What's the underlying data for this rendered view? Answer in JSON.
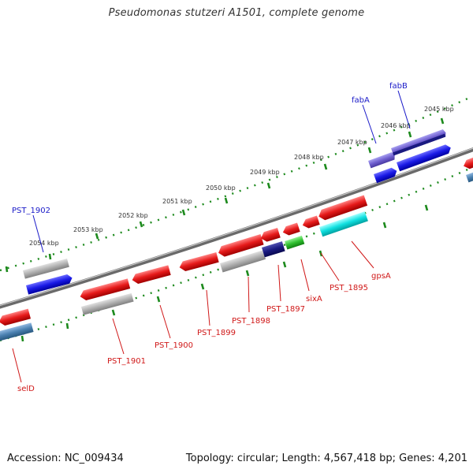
{
  "title": "Pseudomonas stutzeri A1501, complete genome",
  "footer": {
    "accession": "Accession: NC_009434",
    "summary": "Topology: circular; Length: 4,567,418 bp; Genes: 4,201"
  },
  "colors": {
    "backbone": "#8a8a8a",
    "ticks": "#1d8a1d",
    "label_forward": "#1a1ac8",
    "label_reverse": "#d01818"
  },
  "scale_labels": [
    "2045 kbp",
    "2046 kbp",
    "2047 kbp",
    "2048 kbp",
    "2049 kbp",
    "2050 kbp",
    "2051 kbp",
    "2052 kbp",
    "2053 kbp",
    "2054 kbp"
  ],
  "gene_labels": [
    {
      "text": "fabA",
      "strand": "forward"
    },
    {
      "text": "fabB",
      "strand": "forward"
    },
    {
      "text": "PST_1902",
      "strand": "forward"
    },
    {
      "text": "gpsA",
      "strand": "reverse"
    },
    {
      "text": "PST_1895",
      "strand": "reverse"
    },
    {
      "text": "sixA",
      "strand": "reverse"
    },
    {
      "text": "PST_1897",
      "strand": "reverse"
    },
    {
      "text": "PST_1898",
      "strand": "reverse"
    },
    {
      "text": "PST_1899",
      "strand": "reverse"
    },
    {
      "text": "PST_1900",
      "strand": "reverse"
    },
    {
      "text": "PST_1901",
      "strand": "reverse"
    },
    {
      "text": "selD",
      "strand": "reverse"
    }
  ],
  "features": [
    {
      "name": "feature-forward-blue",
      "color": "#1a1ae6"
    },
    {
      "name": "feature-forward-grey",
      "color": "#b0b0b0"
    },
    {
      "name": "feature-forward-purple",
      "color": "#7060d0"
    },
    {
      "name": "feature-forward-navy",
      "color": "#1a1a80"
    },
    {
      "name": "feature-reverse-red",
      "color": "#e61a1a"
    },
    {
      "name": "feature-reverse-grey",
      "color": "#b8b8b8"
    },
    {
      "name": "feature-reverse-navy",
      "color": "#101080"
    },
    {
      "name": "feature-reverse-green",
      "color": "#30c030"
    },
    {
      "name": "feature-reverse-cyan",
      "color": "#10e0e0"
    },
    {
      "name": "feature-reverse-steelblue",
      "color": "#4a80b0"
    }
  ]
}
